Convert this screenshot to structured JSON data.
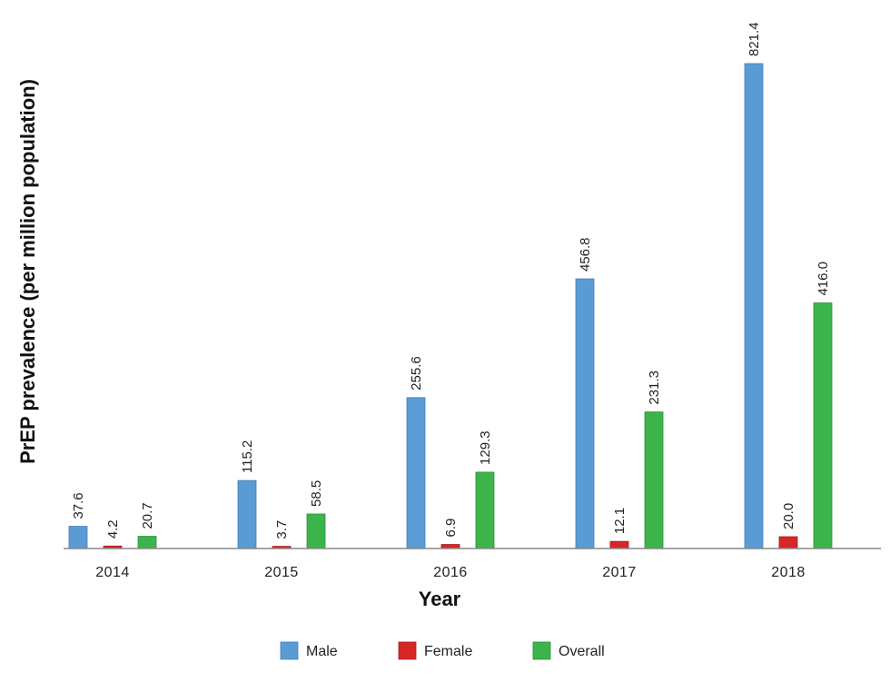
{
  "chart_data": {
    "type": "bar",
    "categories": [
      "2014",
      "2015",
      "2016",
      "2017",
      "2018"
    ],
    "series": [
      {
        "name": "Male",
        "color": "#5b9bd5",
        "stroke": "#3f7fb8",
        "values": [
          37.6,
          115.2,
          255.6,
          456.8,
          821.4
        ],
        "labels": [
          "37.6",
          "115.2",
          "255.6",
          "456.8",
          "821.4"
        ]
      },
      {
        "name": "Female",
        "color": "#d62728",
        "stroke": "#a81c1d",
        "values": [
          4.2,
          3.7,
          6.9,
          12.1,
          20.0
        ],
        "labels": [
          "4.2",
          "3.7",
          "6.9",
          "12.1",
          "20.0"
        ]
      },
      {
        "name": "Overall",
        "color": "#3cb44b",
        "stroke": "#2a8f37",
        "values": [
          20.7,
          58.5,
          129.3,
          231.3,
          416.0
        ],
        "labels": [
          "20.7",
          "58.5",
          "129.3",
          "231.3",
          "416.0"
        ]
      }
    ],
    "xlabel": "Year",
    "ylabel": "PrEP prevalence (per million population)",
    "ylim": [
      0,
      821.4
    ],
    "grid": false,
    "legend": "bottom-center"
  }
}
